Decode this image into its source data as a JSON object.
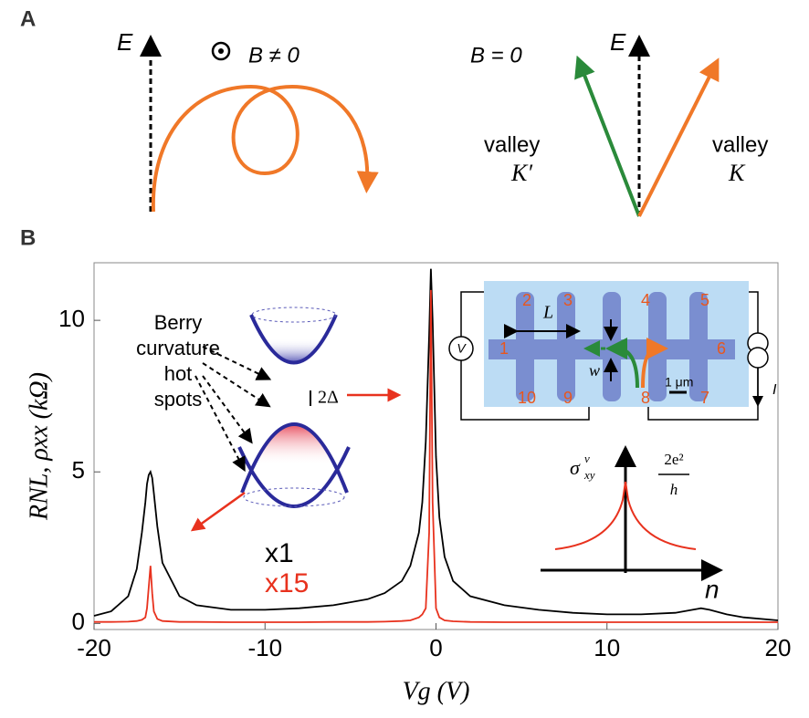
{
  "panel_labels": [
    "A",
    "B"
  ],
  "panel_a": {
    "left_axis": "E",
    "left_field": "B ≠ 0",
    "right_field": "B = 0",
    "right_axis": "E",
    "valley_left": [
      "valley",
      "K′"
    ],
    "valley_right": [
      "valley",
      "K"
    ]
  },
  "insets": {
    "berry": [
      "Berry",
      "curvature",
      "hot",
      "spots"
    ],
    "gap": "2Δ",
    "device_numbers": [
      "1",
      "2",
      "3",
      "4",
      "5",
      "6",
      "7",
      "8",
      "9",
      "10"
    ],
    "length": "L",
    "width": "w",
    "scale": "1 μm",
    "voltmeter": "V",
    "current": "I",
    "sigma": "σ",
    "sigma_sup": "v",
    "sigma_sub": "xy",
    "quantum": "2e²",
    "quantum_den": "h",
    "density": "n"
  },
  "chart_data": {
    "type": "line",
    "x_label": "Vg (V)",
    "y_label": "RNL, ρxx (kΩ)",
    "x": [
      -20,
      -19,
      -18,
      -17.5,
      -17.2,
      -17,
      -16.9,
      -16.8,
      -16.7,
      -16.6,
      -16.5,
      -16.3,
      -16,
      -15,
      -14,
      -12,
      -10,
      -8,
      -6,
      -4,
      -3,
      -2,
      -1.5,
      -1,
      -0.8,
      -0.6,
      -0.4,
      -0.3,
      -0.2,
      0,
      0.2,
      0.5,
      1,
      2,
      4,
      6,
      8,
      10,
      12,
      14,
      15,
      15.5,
      16,
      17,
      18,
      20
    ],
    "series": [
      {
        "name": "x1",
        "color": "#000000",
        "values": [
          0.25,
          0.4,
          0.9,
          1.8,
          3.0,
          4.0,
          4.6,
          4.9,
          5.0,
          4.8,
          4.3,
          3.2,
          2.0,
          0.9,
          0.6,
          0.45,
          0.45,
          0.5,
          0.6,
          0.8,
          1.0,
          1.4,
          1.9,
          3.0,
          4.0,
          6.0,
          9.5,
          11.7,
          10.0,
          5.5,
          3.5,
          2.2,
          1.4,
          0.9,
          0.6,
          0.45,
          0.35,
          0.3,
          0.3,
          0.35,
          0.45,
          0.5,
          0.45,
          0.3,
          0.2,
          0.1
        ]
      },
      {
        "name": "x15",
        "color": "#e8321e",
        "values": [
          0.05,
          0.05,
          0.06,
          0.08,
          0.12,
          0.2,
          0.5,
          1.2,
          1.9,
          1.0,
          0.4,
          0.15,
          0.08,
          0.05,
          0.05,
          0.04,
          0.04,
          0.04,
          0.05,
          0.05,
          0.06,
          0.08,
          0.1,
          0.2,
          0.3,
          0.5,
          3.0,
          11.0,
          4.0,
          0.5,
          0.2,
          0.1,
          0.07,
          0.05,
          0.04,
          0.04,
          0.04,
          0.04,
          0.04,
          0.04,
          0.04,
          0.04,
          0.04,
          0.04,
          0.04,
          0.04
        ]
      }
    ],
    "xlim": [
      -20,
      20
    ],
    "ylim": [
      -0.2,
      11.9
    ],
    "xticks": [
      -20,
      -10,
      0,
      10,
      20
    ],
    "yticks": [
      0,
      5,
      10
    ]
  }
}
